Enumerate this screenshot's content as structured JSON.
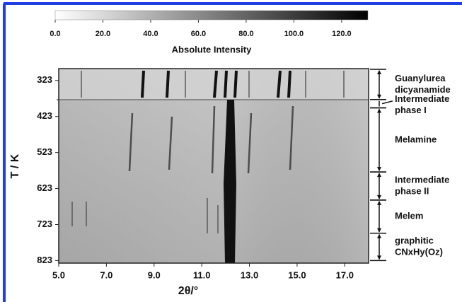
{
  "chart_data": {
    "type": "heatmap",
    "colorbar": {
      "label": "Absolute Intensity",
      "clim": [
        0,
        131
      ],
      "ticks": [
        {
          "value": 0,
          "label": "0.0"
        },
        {
          "value": 20,
          "label": "20.0"
        },
        {
          "value": 40,
          "label": "40.0"
        },
        {
          "value": 60,
          "label": "60.0"
        },
        {
          "value": 80,
          "label": "80.0"
        },
        {
          "value": 100,
          "label": "100.0"
        },
        {
          "value": 120,
          "label": "120.0"
        }
      ]
    },
    "x_label": "2θ/°",
    "y_label": "T / K",
    "xlim": [
      5.0,
      18.0
    ],
    "xticks": [
      {
        "value": 5,
        "label": "5.0"
      },
      {
        "value": 7,
        "label": "7.0"
      },
      {
        "value": 9,
        "label": "9.0"
      },
      {
        "value": 11,
        "label": "11.0"
      },
      {
        "value": 13,
        "label": "13.0"
      },
      {
        "value": 15,
        "label": "15.0"
      },
      {
        "value": 17,
        "label": "17.0"
      }
    ],
    "ylim": [
      290,
      830
    ],
    "y_inverted": true,
    "yticks": [
      323,
      423,
      523,
      623,
      723,
      823
    ],
    "phases": [
      {
        "label": [
          "Guanylurea",
          "dicyanamide"
        ],
        "trange": [
          292,
          376
        ]
      },
      {
        "label": [
          "Intermediate",
          "phase I"
        ],
        "trange": [
          376,
          399
        ]
      },
      {
        "label": [
          "Melamine"
        ],
        "trange": [
          399,
          577
        ]
      },
      {
        "label": [
          "Intermediate",
          "phase II"
        ],
        "trange": [
          577,
          655
        ]
      },
      {
        "label": [
          "Melem"
        ],
        "trange": [
          655,
          747
        ]
      },
      {
        "label": [
          "graphitic",
          "CNxHy(Oz)"
        ],
        "trange": [
          747,
          823
        ]
      }
    ]
  }
}
